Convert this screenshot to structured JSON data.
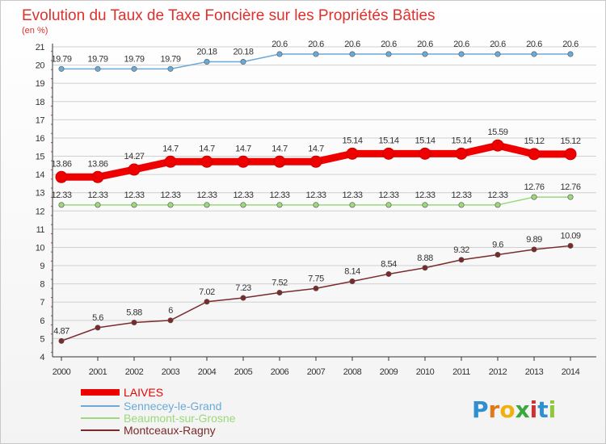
{
  "colors": {
    "title": "#e0302c",
    "grid": "#d0d0d0",
    "axis": "#333333"
  },
  "chart_data": {
    "type": "line",
    "title": "Evolution du Taux de Taxe Foncière sur les Propriétés Bâties",
    "ylabel": "(en %)",
    "xlabel": "",
    "x": [
      "2000",
      "2001",
      "2002",
      "2003",
      "2004",
      "2005",
      "2006",
      "2007",
      "2008",
      "2009",
      "2010",
      "2011",
      "2012",
      "2013",
      "2014"
    ],
    "ylim": [
      4,
      21
    ],
    "yticks": [
      "4",
      "5",
      "6",
      "7",
      "8",
      "9",
      "10",
      "11",
      "12",
      "13",
      "14",
      "15",
      "16",
      "17",
      "18",
      "19",
      "20",
      "21"
    ],
    "grid": "horizontal",
    "legend_position": "bottom-left",
    "series": [
      {
        "name": "LAIVES",
        "color": "#ee0000",
        "style": "thick",
        "values": [
          13.86,
          13.86,
          14.27,
          14.7,
          14.7,
          14.7,
          14.7,
          14.7,
          15.14,
          15.14,
          15.14,
          15.14,
          15.59,
          15.12,
          15.12
        ],
        "labels": [
          "13.86",
          "13.86",
          "14.27",
          "14.7",
          "14.7",
          "14.7",
          "14.7",
          "14.7",
          "15.14",
          "15.14",
          "15.14",
          "15.14",
          "15.59",
          "15.12",
          "15.12"
        ]
      },
      {
        "name": "Sennecey-le-Grand",
        "color": "#6aaad6",
        "style": "thin",
        "values": [
          19.79,
          19.79,
          19.79,
          19.79,
          20.18,
          20.18,
          20.6,
          20.6,
          20.6,
          20.6,
          20.6,
          20.6,
          20.6,
          20.6,
          20.6
        ],
        "labels": [
          "19.79",
          "19.79",
          "19.79",
          "19.79",
          "20.18",
          "20.18",
          "20.6",
          "20.6",
          "20.6",
          "20.6",
          "20.6",
          "20.6",
          "20.6",
          "20.6",
          "20.6"
        ]
      },
      {
        "name": "Beaumont-sur-Grosne",
        "color": "#9bd97a",
        "style": "thin",
        "values": [
          12.33,
          12.33,
          12.33,
          12.33,
          12.33,
          12.33,
          12.33,
          12.33,
          12.33,
          12.33,
          12.33,
          12.33,
          12.33,
          12.76,
          12.76
        ],
        "labels": [
          "12.33",
          "12.33",
          "12.33",
          "12.33",
          "12.33",
          "12.33",
          "12.33",
          "12.33",
          "12.33",
          "12.33",
          "12.33",
          "12.33",
          "12.33",
          "12.76",
          "12.76"
        ]
      },
      {
        "name": "Montceaux-Ragny",
        "color": "#7a2a2a",
        "style": "thin",
        "values": [
          4.87,
          5.6,
          5.88,
          6,
          7.02,
          7.23,
          7.52,
          7.75,
          8.14,
          8.54,
          8.88,
          9.32,
          9.6,
          9.89,
          10.09
        ],
        "labels": [
          "4.87",
          "5.6",
          "5.88",
          "6",
          "7.02",
          "7.23",
          "7.52",
          "7.75",
          "8.14",
          "8.54",
          "8.88",
          "9.32",
          "9.6",
          "9.89",
          "10.09"
        ]
      }
    ]
  },
  "brand": {
    "letters": [
      "P",
      "r",
      "o",
      "x",
      "i",
      "t",
      "i"
    ],
    "colors": [
      "#2f8fd0",
      "#e07a18",
      "#f0b010",
      "#3aa83a",
      "#d03030",
      "#2f8fd0",
      "#8cc83c"
    ]
  }
}
